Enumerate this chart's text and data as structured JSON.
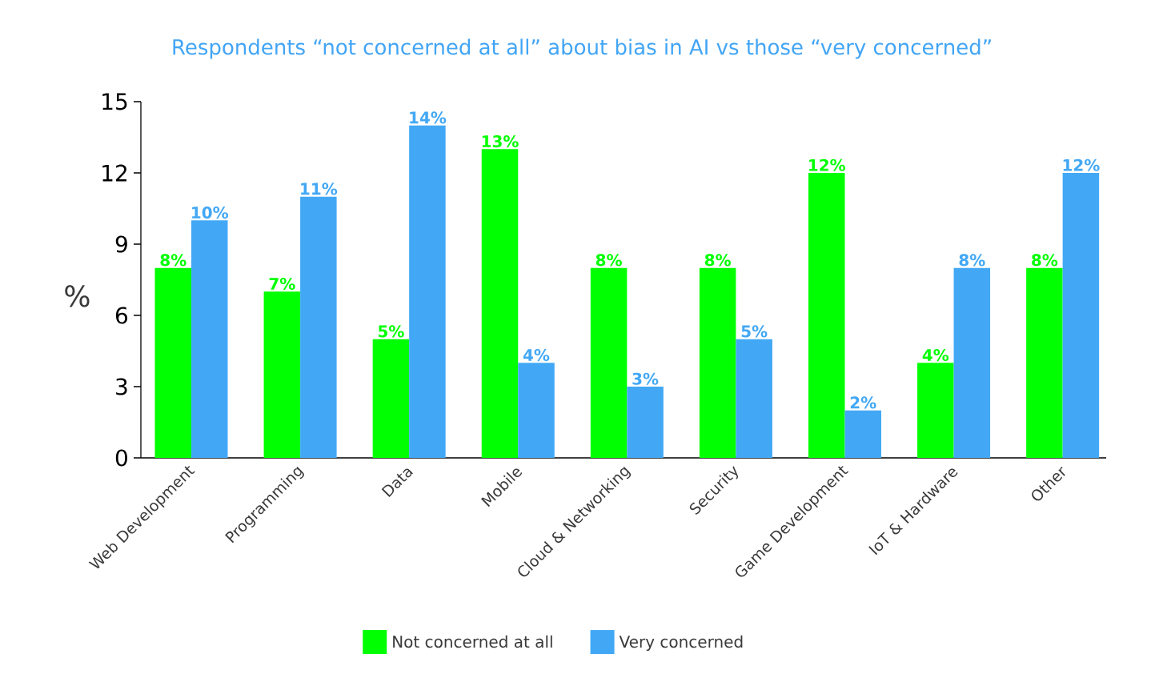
{
  "chart_data": {
    "type": "bar",
    "title": "Respondents “not concerned at all” about bias in AI vs those “very concerned”",
    "ylabel": "%",
    "categories": [
      "Web Development",
      "Programming",
      "Data",
      "Mobile",
      "Cloud & Networking",
      "Security",
      "Game Development",
      "IoT & Hardware",
      "Other"
    ],
    "series": [
      {
        "name": "Not concerned at all",
        "color": "#00ff00",
        "values": [
          8,
          7,
          5,
          13,
          8,
          8,
          12,
          4,
          8
        ],
        "value_labels": [
          "8%",
          "7%",
          "5%",
          "13%",
          "8%",
          "8%",
          "12%",
          "4%",
          "8%"
        ]
      },
      {
        "name": "Very concerned",
        "color": "#42a8f5",
        "values": [
          10,
          11,
          14,
          4,
          3,
          5,
          2,
          8,
          12
        ],
        "value_labels": [
          "10%",
          "11%",
          "14%",
          "4%",
          "3%",
          "5%",
          "2%",
          "8%",
          "12%"
        ]
      }
    ],
    "ylim": [
      0,
      15
    ],
    "yticks": [
      0,
      3,
      6,
      9,
      12,
      15
    ],
    "legend": "bottom",
    "grid": false
  }
}
